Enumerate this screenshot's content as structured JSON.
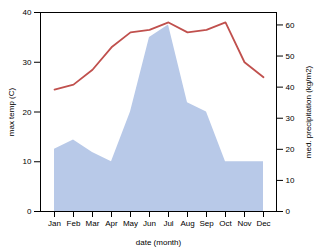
{
  "chart_data": {
    "type": "combo",
    "categories": [
      "Jan",
      "Feb",
      "Mar",
      "Apr",
      "May",
      "Jun",
      "Jul",
      "Aug",
      "Sep",
      "Oct",
      "Nov",
      "Dec"
    ],
    "xlabel": "date (month)",
    "ylabel": "max temp (C)",
    "y2label": "med. precipitation (kg/m2)",
    "ylim": [
      0,
      40
    ],
    "yticks": [
      0,
      10,
      20,
      30,
      40
    ],
    "y2lim": [
      0,
      64
    ],
    "y2ticks": [
      0,
      10,
      20,
      30,
      40,
      50,
      60
    ],
    "series": [
      {
        "type": "area",
        "axis": "y2",
        "color": "#b8c9e8",
        "values": [
          20,
          23,
          19,
          16,
          32,
          56,
          60,
          35,
          32,
          16,
          16,
          16
        ]
      },
      {
        "type": "line",
        "color": "#c0504d",
        "values": [
          24.5,
          25.5,
          28.5,
          33.0,
          36.0,
          36.5,
          38.0,
          36.0,
          36.5,
          38.0,
          30.0,
          27.0
        ]
      }
    ]
  }
}
